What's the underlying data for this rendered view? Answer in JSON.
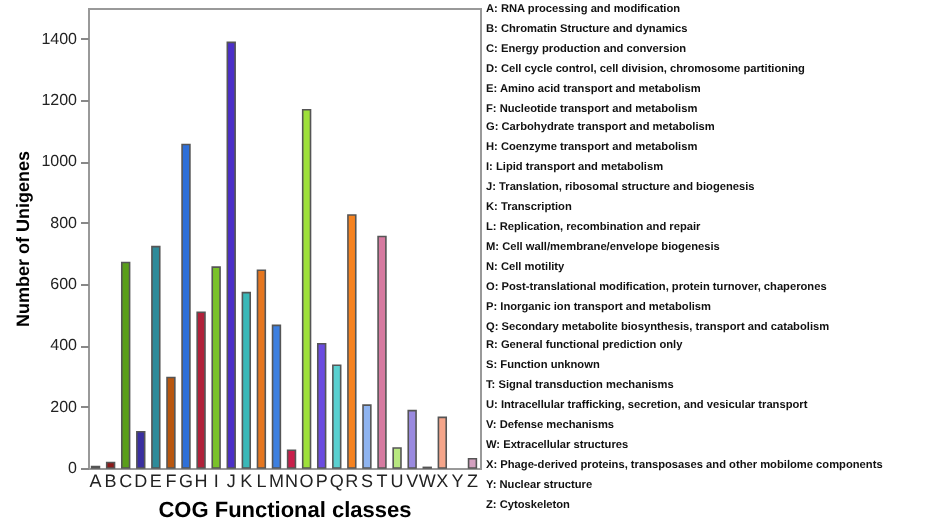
{
  "chart_data": {
    "type": "bar",
    "xlabel": "COG Functional classes",
    "ylabel": "Number of Unigenes",
    "categories": [
      "A",
      "B",
      "C",
      "D",
      "E",
      "F",
      "G",
      "H",
      "I",
      "J",
      "K",
      "L",
      "M",
      "N",
      "O",
      "P",
      "Q",
      "R",
      "S",
      "T",
      "U",
      "V",
      "W",
      "X",
      "Y",
      "Z"
    ],
    "values": [
      5,
      18,
      670,
      118,
      722,
      295,
      1055,
      508,
      655,
      1388,
      572,
      645,
      465,
      58,
      1168,
      405,
      335,
      825,
      205,
      755,
      65,
      187,
      2,
      165,
      null,
      30
    ],
    "colors": [
      "#1f2d6e",
      "#8b1a1a",
      "#5a9e1a",
      "#3a2fa0",
      "#2e8b9a",
      "#b8560f",
      "#2e6fd8",
      "#b0213a",
      "#7ac22a",
      "#4b2fc8",
      "#3ab8b8",
      "#e5761f",
      "#3d7fe0",
      "#c81e4a",
      "#9ee03a",
      "#6a4be0",
      "#5ad0d0",
      "#f58220",
      "#8fb4f0",
      "#d67aa0",
      "#b8e880",
      "#9a8ae0",
      "#444444",
      "#f5a58a",
      "#cccccc",
      "#d4a0c0"
    ],
    "ylim": [
      0,
      1500
    ],
    "yticks": [
      0,
      200,
      400,
      600,
      800,
      1000,
      1200,
      1400
    ],
    "grid": false,
    "annotations": [
      "A: RNA processing and modification",
      "B: Chromatin Structure and dynamics",
      "C: Energy production and conversion",
      "D: Cell cycle control, cell division, chromosome partitioning",
      "E: Amino acid transport and metabolism",
      "F: Nucleotide transport and metabolism",
      "G: Carbohydrate transport and metabolism",
      "H: Coenzyme transport and metabolism",
      "I: Lipid transport and metabolism",
      "J: Translation, ribosomal structure and biogenesis",
      "K: Transcription",
      "L: Replication, recombination and repair",
      "M: Cell wall/membrane/envelope biogenesis",
      "N: Cell motility",
      "O: Post-translational modification, protein turnover, chaperones",
      "P: Inorganic ion transport and metabolism",
      "Q: Secondary metabolite biosynthesis, transport and catabolism",
      "R: General functional prediction only",
      "S: Function unknown",
      "T: Signal transduction mechanisms",
      "U: Intracellular trafficking, secretion, and vesicular transport",
      "V: Defense mechanisms",
      "W: Extracellular structures",
      "X: Phage-derived proteins, transposases and other mobilome components",
      "Y: Nuclear structure",
      "Z: Cytoskeleton"
    ]
  }
}
